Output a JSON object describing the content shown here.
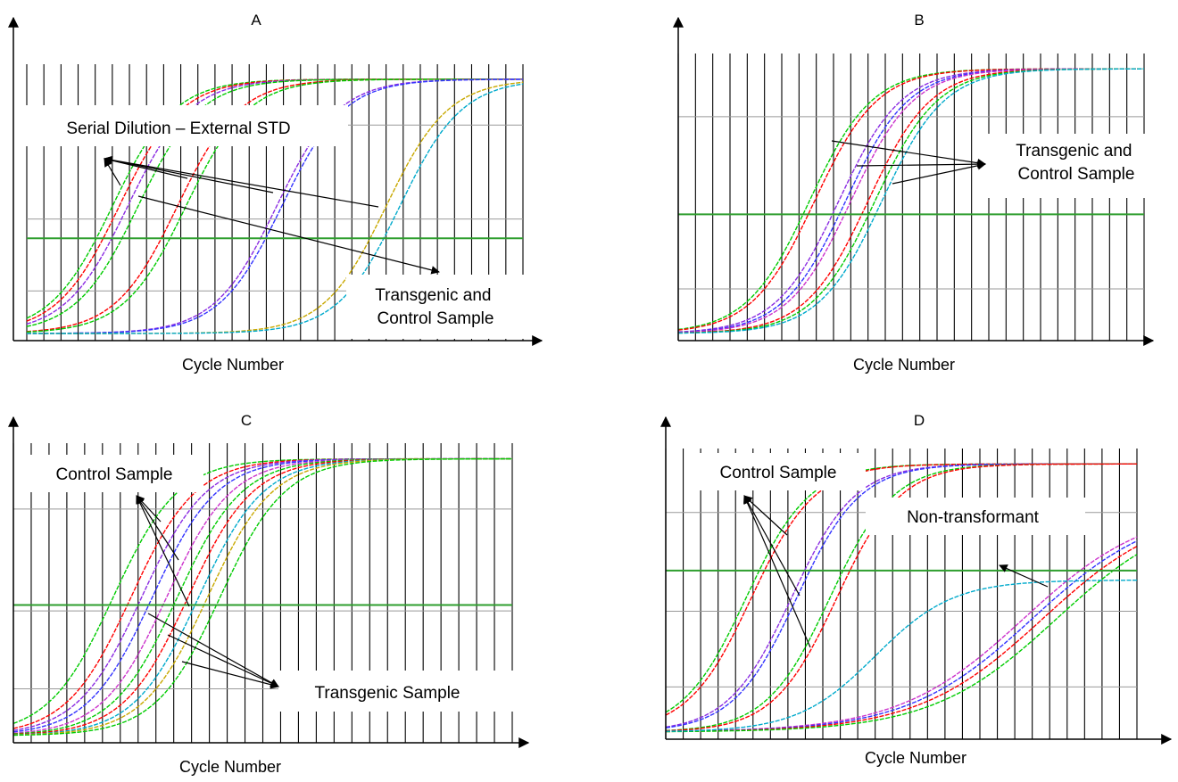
{
  "figure_colors": {
    "threshold": "#2e9e2e",
    "gridline": "#000000",
    "gridline_light": "#999999",
    "curves": [
      "#00cc00",
      "#ff0000",
      "#8a2be2",
      "#3333ff",
      "#cc33cc",
      "#c8a800",
      "#00aacc",
      "#ff6600"
    ]
  },
  "chart_data": [
    {
      "panel": "A",
      "type": "line",
      "title": "A",
      "xlabel": "Cycle Number",
      "ylabel": "",
      "threshold": 0.37,
      "grid": true,
      "annotations": [
        "Serial Dilution – External STD",
        "Transgenic and Control Sample"
      ],
      "series": [
        {
          "color": "#00cc00",
          "midpoint": 5.0
        },
        {
          "color": "#ff0000",
          "midpoint": 5.4
        },
        {
          "color": "#8a2be2",
          "midpoint": 5.9
        },
        {
          "color": "#00cc00",
          "midpoint": 6.5
        },
        {
          "color": "#ff0000",
          "midpoint": 8.8
        },
        {
          "color": "#00cc00",
          "midpoint": 9.3
        },
        {
          "color": "#8a2be2",
          "midpoint": 14.6
        },
        {
          "color": "#3333ff",
          "midpoint": 14.9
        },
        {
          "color": "#c8a800",
          "midpoint": 21.0
        },
        {
          "color": "#00aacc",
          "midpoint": 21.8
        }
      ]
    },
    {
      "panel": "B",
      "type": "line",
      "title": "B",
      "xlabel": "Cycle Number",
      "ylabel": "",
      "threshold": 0.44,
      "grid": true,
      "annotations": [
        "Transgenic and Control Sample"
      ],
      "series": [
        {
          "color": "#00cc00",
          "midpoint": 7.6
        },
        {
          "color": "#ff0000",
          "midpoint": 7.9
        },
        {
          "color": "#8a2be2",
          "midpoint": 9.3
        },
        {
          "color": "#3333ff",
          "midpoint": 9.7
        },
        {
          "color": "#cc33cc",
          "midpoint": 10.0
        },
        {
          "color": "#ff0000",
          "midpoint": 11.0
        },
        {
          "color": "#00cc00",
          "midpoint": 11.4
        },
        {
          "color": "#00aacc",
          "midpoint": 11.8
        }
      ]
    },
    {
      "panel": "C",
      "type": "line",
      "title": "C",
      "xlabel": "Cycle Number",
      "ylabel": "",
      "threshold": 0.46,
      "grid": true,
      "annotations": [
        "Control Sample",
        "Transgenic Sample"
      ],
      "series": [
        {
          "color": "#00cc00",
          "midpoint": 5.6
        },
        {
          "color": "#ff0000",
          "midpoint": 6.6
        },
        {
          "color": "#8a2be2",
          "midpoint": 7.2
        },
        {
          "color": "#3333ff",
          "midpoint": 7.8
        },
        {
          "color": "#cc33cc",
          "midpoint": 8.6
        },
        {
          "color": "#00cc00",
          "midpoint": 9.2
        },
        {
          "color": "#ff0000",
          "midpoint": 9.8
        },
        {
          "color": "#00aacc",
          "midpoint": 10.4
        },
        {
          "color": "#c8a800",
          "midpoint": 10.9
        },
        {
          "color": "#00cc00",
          "midpoint": 11.6
        }
      ]
    },
    {
      "panel": "D",
      "type": "line",
      "title": "D",
      "xlabel": "Cycle Number",
      "ylabel": "",
      "threshold": 0.58,
      "grid": true,
      "annotations": [
        "Control Sample",
        "Non-transformant"
      ],
      "series": [
        {
          "color": "#00cc00",
          "midpoint": 4.6
        },
        {
          "color": "#ff0000",
          "midpoint": 4.9
        },
        {
          "color": "#8a2be2",
          "midpoint": 7.2
        },
        {
          "color": "#3333ff",
          "midpoint": 7.5
        },
        {
          "color": "#00cc00",
          "midpoint": 9.4
        },
        {
          "color": "#ff0000",
          "midpoint": 9.8
        },
        {
          "color": "#cc33cc",
          "midpoint": 20.5
        },
        {
          "color": "#3333ff",
          "midpoint": 21.0
        },
        {
          "color": "#ff0000",
          "midpoint": 21.6
        },
        {
          "color": "#00cc00",
          "midpoint": 22.4
        },
        {
          "color": "#00aacc",
          "midpoint": 18.0
        }
      ]
    }
  ]
}
